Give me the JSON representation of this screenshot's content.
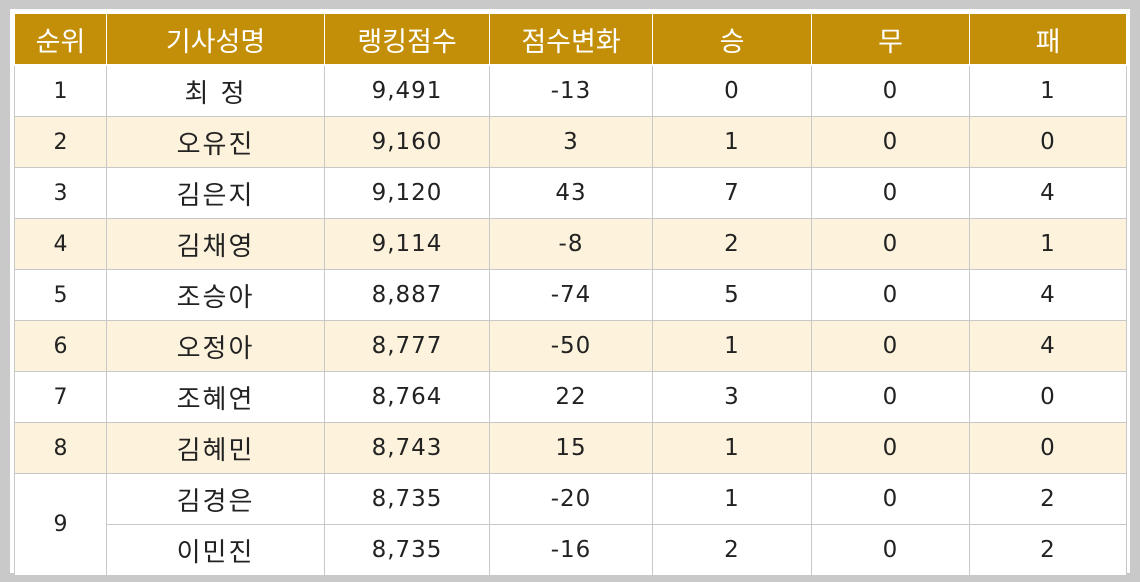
{
  "colors": {
    "header_bg": "#c38f08",
    "header_text": "#ffffff",
    "row_alt": "#fdf3dd",
    "row": "#ffffff"
  },
  "headers": [
    "순위",
    "기사성명",
    "랭킹점수",
    "점수변화",
    "승",
    "무",
    "패"
  ],
  "rows": [
    {
      "rank": "1",
      "name": "최 정",
      "score": "9,491",
      "change": "-13",
      "win": "0",
      "draw": "0",
      "loss": "1"
    },
    {
      "rank": "2",
      "name": "오유진",
      "score": "9,160",
      "change": "3",
      "win": "1",
      "draw": "0",
      "loss": "0"
    },
    {
      "rank": "3",
      "name": "김은지",
      "score": "9,120",
      "change": "43",
      "win": "7",
      "draw": "0",
      "loss": "4"
    },
    {
      "rank": "4",
      "name": "김채영",
      "score": "9,114",
      "change": "-8",
      "win": "2",
      "draw": "0",
      "loss": "1"
    },
    {
      "rank": "5",
      "name": "조승아",
      "score": "8,887",
      "change": "-74",
      "win": "5",
      "draw": "0",
      "loss": "4"
    },
    {
      "rank": "6",
      "name": "오정아",
      "score": "8,777",
      "change": "-50",
      "win": "1",
      "draw": "0",
      "loss": "4"
    },
    {
      "rank": "7",
      "name": "조혜연",
      "score": "8,764",
      "change": "22",
      "win": "3",
      "draw": "0",
      "loss": "0"
    },
    {
      "rank": "8",
      "name": "김혜민",
      "score": "8,743",
      "change": "15",
      "win": "1",
      "draw": "0",
      "loss": "0"
    },
    {
      "rank": "9",
      "name": "김경은",
      "score": "8,735",
      "change": "-20",
      "win": "1",
      "draw": "0",
      "loss": "2"
    },
    {
      "rank": "",
      "name": "이민진",
      "score": "8,735",
      "change": "-16",
      "win": "2",
      "draw": "0",
      "loss": "2"
    }
  ]
}
